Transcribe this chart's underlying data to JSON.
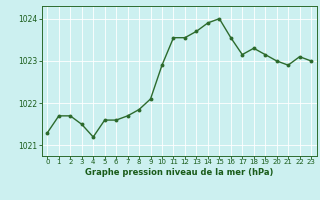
{
  "x": [
    0,
    1,
    2,
    3,
    4,
    5,
    6,
    7,
    8,
    9,
    10,
    11,
    12,
    13,
    14,
    15,
    16,
    17,
    18,
    19,
    20,
    21,
    22,
    23
  ],
  "y": [
    1021.3,
    1021.7,
    1021.7,
    1021.5,
    1021.2,
    1021.6,
    1021.6,
    1021.7,
    1021.85,
    1022.1,
    1022.9,
    1023.55,
    1023.55,
    1023.7,
    1023.9,
    1024.0,
    1023.55,
    1023.15,
    1023.3,
    1023.15,
    1023.0,
    1022.9,
    1023.1,
    1023.0
  ],
  "line_color": "#2d6b2d",
  "marker": "o",
  "marker_size": 1.8,
  "bg_color": "#ccf0f0",
  "grid_color": "#ffffff",
  "xlabel": "Graphe pression niveau de la mer (hPa)",
  "xlabel_color": "#1a5c1a",
  "tick_color": "#1a5c1a",
  "ylim": [
    1020.75,
    1024.3
  ],
  "yticks": [
    1021,
    1022,
    1023,
    1024
  ],
  "xlim": [
    -0.5,
    23.5
  ],
  "xticks": [
    0,
    1,
    2,
    3,
    4,
    5,
    6,
    7,
    8,
    9,
    10,
    11,
    12,
    13,
    14,
    15,
    16,
    17,
    18,
    19,
    20,
    21,
    22,
    23
  ],
  "spine_color": "#2d6b2d",
  "linewidth": 1.0
}
